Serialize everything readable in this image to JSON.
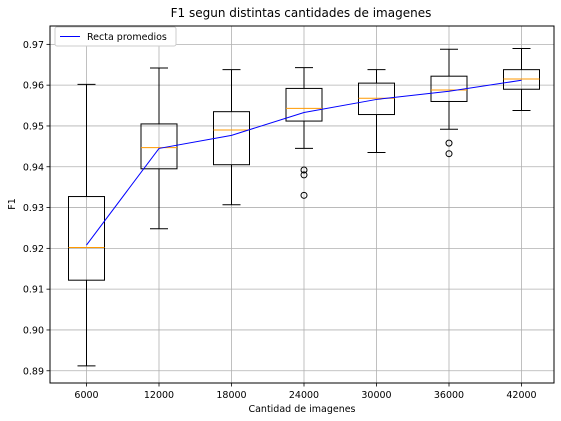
{
  "chart_data": {
    "type": "boxplot",
    "title": "F1 segun distintas cantidades de imagenes",
    "xlabel": "Cantidad de imagenes",
    "ylabel": "F1",
    "categories": [
      "6000",
      "12000",
      "18000",
      "24000",
      "30000",
      "36000",
      "42000"
    ],
    "ylim": [
      0.887,
      0.9745
    ],
    "yticks": [
      "0.89",
      "0.90",
      "0.91",
      "0.92",
      "0.93",
      "0.94",
      "0.95",
      "0.96",
      "0.97"
    ],
    "grid": true,
    "legend_position": "top-left",
    "boxes": [
      {
        "category": "6000",
        "whisker_low": 0.8912,
        "q1": 0.9122,
        "median": 0.9202,
        "q3": 0.9327,
        "whisker_high": 0.9602,
        "outliers": []
      },
      {
        "category": "12000",
        "whisker_low": 0.9248,
        "q1": 0.9395,
        "median": 0.9447,
        "q3": 0.9505,
        "whisker_high": 0.9642,
        "outliers": []
      },
      {
        "category": "18000",
        "whisker_low": 0.9307,
        "q1": 0.9405,
        "median": 0.949,
        "q3": 0.9535,
        "whisker_high": 0.9638,
        "outliers": []
      },
      {
        "category": "24000",
        "whisker_low": 0.9445,
        "q1": 0.9512,
        "median": 0.9543,
        "q3": 0.9592,
        "whisker_high": 0.9643,
        "outliers": [
          0.9392,
          0.938,
          0.933
        ]
      },
      {
        "category": "30000",
        "whisker_low": 0.9435,
        "q1": 0.9528,
        "median": 0.9568,
        "q3": 0.9605,
        "whisker_high": 0.9638,
        "outliers": []
      },
      {
        "category": "36000",
        "whisker_low": 0.9492,
        "q1": 0.956,
        "median": 0.9588,
        "q3": 0.9622,
        "whisker_high": 0.9688,
        "outliers": [
          0.9458,
          0.9432
        ]
      },
      {
        "category": "42000",
        "whisker_low": 0.9538,
        "q1": 0.959,
        "median": 0.9615,
        "q3": 0.9638,
        "whisker_high": 0.969,
        "outliers": []
      }
    ],
    "series": [
      {
        "name": "Recta promedios",
        "values": [
          0.9208,
          0.9445,
          0.9477,
          0.9533,
          0.9565,
          0.9585,
          0.9612
        ]
      }
    ],
    "colors": {
      "mean_line": "#0000ff",
      "median": "#ff9900",
      "box": "#000000",
      "grid": "#b0b0b0"
    }
  }
}
